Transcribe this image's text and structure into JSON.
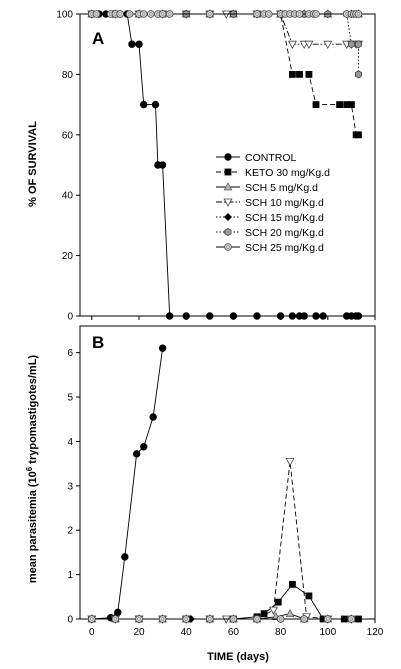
{
  "chart_data": [
    {
      "panel": "A",
      "type": "line",
      "ylabel": "% OF SURVIVAL",
      "xlabel": "",
      "xlim": [
        -5,
        120
      ],
      "ylim": [
        0,
        100
      ],
      "yticks": [
        0,
        20,
        40,
        60,
        80,
        100
      ],
      "xticks": [],
      "legend": "right-center",
      "series": [
        {
          "name": "CONTROL",
          "marker": "circle-filled",
          "dash": "solid",
          "x": [
            0,
            3,
            6,
            9,
            12,
            15,
            17,
            20,
            22,
            27,
            28,
            30,
            33,
            40,
            50,
            60,
            70,
            80,
            85,
            88,
            90,
            95,
            98,
            108,
            110,
            112,
            113
          ],
          "y": [
            100,
            100,
            100,
            100,
            100,
            100,
            90,
            90,
            70,
            70,
            50,
            50,
            0,
            0,
            0,
            0,
            0,
            0,
            0,
            0,
            0,
            0,
            0,
            0,
            0,
            0,
            0
          ]
        },
        {
          "name": "KETO 30 mg/Kg.d",
          "marker": "square-filled",
          "dash": "dash",
          "x": [
            0,
            10,
            20,
            30,
            40,
            50,
            60,
            70,
            80,
            85,
            88,
            92,
            95,
            105,
            108,
            110,
            112,
            113
          ],
          "y": [
            100,
            100,
            100,
            100,
            100,
            100,
            100,
            100,
            100,
            80,
            80,
            80,
            70,
            70,
            70,
            70,
            60,
            60
          ]
        },
        {
          "name": "SCH 5 mg/Kg.d",
          "marker": "triangle-up-gray",
          "dash": "solid",
          "x": [
            0,
            10,
            20,
            30,
            40,
            50,
            60,
            70,
            80,
            90,
            100,
            110,
            113
          ],
          "y": [
            100,
            100,
            100,
            100,
            100,
            100,
            100,
            100,
            100,
            100,
            100,
            100,
            100
          ]
        },
        {
          "name": "SCH 10 mg/Kg.d",
          "marker": "triangle-down-open",
          "dash": "dashdot",
          "x": [
            0,
            10,
            20,
            30,
            40,
            50,
            57,
            70,
            80,
            85,
            90,
            92,
            100,
            108,
            110,
            112,
            113
          ],
          "y": [
            100,
            100,
            100,
            100,
            100,
            100,
            100,
            100,
            100,
            90,
            90,
            90,
            90,
            90,
            90,
            90,
            90
          ]
        },
        {
          "name": "SCH 15 mg/Kg.d",
          "marker": "diamond-filled",
          "dash": "dot",
          "x": [
            0,
            10,
            20,
            30,
            40,
            50,
            60,
            70,
            80,
            90,
            100,
            110,
            113
          ],
          "y": [
            100,
            100,
            100,
            100,
            100,
            100,
            100,
            100,
            100,
            100,
            100,
            100,
            100
          ]
        },
        {
          "name": "SCH 20 mg/Kg.d",
          "marker": "hex-gray",
          "dash": "dot",
          "x": [
            0,
            10,
            20,
            30,
            40,
            50,
            60,
            70,
            80,
            90,
            100,
            108,
            110,
            113,
            113
          ],
          "y": [
            100,
            100,
            100,
            100,
            100,
            100,
            100,
            100,
            100,
            100,
            100,
            100,
            90,
            90,
            80
          ]
        },
        {
          "name": "SCH 25 mg/Kg.d",
          "marker": "circle-gray-ring",
          "dash": "solid",
          "x": [
            0,
            2,
            8,
            10,
            12,
            16,
            20,
            22,
            25,
            28,
            30,
            33,
            50,
            70,
            73,
            75,
            80,
            82,
            84,
            86,
            88,
            92,
            94,
            95,
            108,
            110,
            111,
            112,
            113
          ],
          "y": [
            100,
            100,
            100,
            100,
            100,
            100,
            100,
            100,
            100,
            100,
            100,
            100,
            100,
            100,
            100,
            100,
            100,
            100,
            100,
            100,
            100,
            100,
            100,
            100,
            100,
            100,
            100,
            100,
            100
          ]
        }
      ]
    },
    {
      "panel": "B",
      "type": "line",
      "ylabel": "mean parasitemia (10⁶ trypomastigotes/mL)",
      "xlabel": "TIME (days)",
      "xlim": [
        -5,
        120
      ],
      "ylim": [
        0,
        6.6
      ],
      "yticks": [
        0,
        1,
        2,
        3,
        4,
        5,
        6
      ],
      "xticks": [
        0,
        20,
        40,
        60,
        80,
        100,
        120
      ],
      "series": [
        {
          "name": "CONTROL",
          "marker": "circle-filled",
          "dash": "solid",
          "x": [
            0,
            8,
            11,
            14,
            19,
            22,
            26,
            30
          ],
          "y": [
            0,
            0.03,
            0.15,
            1.4,
            3.72,
            3.88,
            4.55,
            6.1
          ]
        },
        {
          "name": "KETO 30 mg/Kg.d",
          "marker": "square-filled",
          "dash": "solid",
          "x": [
            0,
            10,
            20,
            30,
            40,
            50,
            60,
            70,
            73,
            79,
            85,
            92,
            98,
            107,
            113
          ],
          "y": [
            0,
            0,
            0,
            0,
            0,
            0,
            0,
            0.05,
            0.12,
            0.38,
            0.78,
            0.52,
            0,
            0,
            0
          ]
        },
        {
          "name": "SCH 5 mg/Kg.d",
          "marker": "triangle-up-gray",
          "dash": "solid",
          "x": [
            0,
            10,
            20,
            30,
            40,
            50,
            60,
            70,
            78,
            84,
            90,
            100,
            110
          ],
          "y": [
            0,
            0,
            0,
            0,
            0,
            0,
            0,
            0,
            0.05,
            0.12,
            0,
            0,
            0
          ]
        },
        {
          "name": "SCH 10 mg/Kg.d",
          "marker": "triangle-down-open",
          "dash": "dash",
          "x": [
            0,
            10,
            20,
            30,
            40,
            50,
            57,
            70,
            77,
            84,
            91,
            100,
            110
          ],
          "y": [
            0,
            0,
            0,
            0,
            0,
            0,
            0,
            0,
            0.2,
            3.55,
            0.05,
            0,
            0
          ]
        },
        {
          "name": "SCH 15 mg/Kg.d",
          "marker": "diamond-filled",
          "dash": "dot",
          "x": [
            0,
            10,
            20,
            30,
            42,
            50,
            60,
            70,
            80,
            90,
            100,
            110
          ],
          "y": [
            0,
            0,
            0,
            0,
            0,
            0,
            0,
            0,
            0,
            0,
            0,
            0
          ]
        },
        {
          "name": "SCH 20 mg/Kg.d",
          "marker": "hex-gray",
          "dash": "dot",
          "x": [
            0,
            10,
            20,
            30,
            40,
            50,
            60,
            70,
            80,
            90,
            100,
            110
          ],
          "y": [
            0,
            0,
            0,
            0,
            0,
            0,
            0,
            0,
            0,
            0,
            0,
            0
          ]
        },
        {
          "name": "SCH 25 mg/Kg.d",
          "marker": "circle-gray-ring",
          "dash": "solid",
          "x": [
            0,
            10,
            20,
            30,
            40,
            50,
            60,
            70,
            80,
            90,
            100,
            110
          ],
          "y": [
            0,
            0,
            0,
            0,
            0,
            0,
            0,
            0,
            0,
            0,
            0,
            0
          ]
        }
      ]
    }
  ],
  "labels": {
    "panelA": "A",
    "panelB": "B",
    "ylabelA": "% OF SURVIVAL",
    "ylabelB_pre": "mean parasitemia (10",
    "ylabelB_sup": "6",
    "ylabelB_post": " trypomastigotes/mL)",
    "xlabel": "TIME (days)"
  }
}
